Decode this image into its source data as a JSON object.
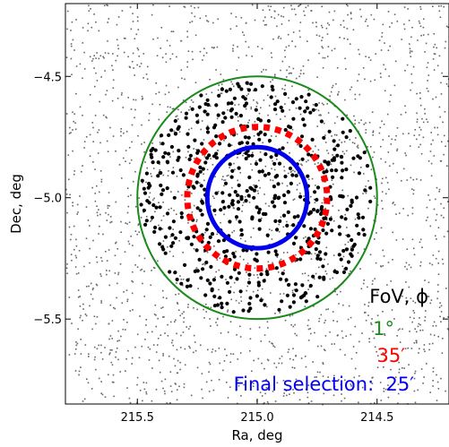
{
  "chart_data": {
    "type": "scatter",
    "xlabel": "Ra, deg",
    "ylabel": "Dec, deg",
    "xlim": [
      215.8,
      214.2
    ],
    "ylim": [
      -5.85,
      -4.2
    ],
    "x_ticks": [
      "215.5",
      "215.0",
      "214.5"
    ],
    "x_tick_values": [
      215.5,
      215.0,
      214.5
    ],
    "y_ticks": [
      "−4.5",
      "−5.0",
      "−5.5"
    ],
    "y_tick_values": [
      -4.5,
      -5.0,
      -5.5
    ],
    "grid": false,
    "center": {
      "ra": 215.0,
      "dec": -5.0
    },
    "circles": [
      {
        "label": "1°",
        "radius_deg": 0.5,
        "color": "#1a8a1a",
        "style": "solid"
      },
      {
        "label": "35′",
        "radius_deg": 0.2917,
        "color": "#ff0000",
        "style": "dotted"
      },
      {
        "label": "25′",
        "radius_deg": 0.2083,
        "color": "#0000ee",
        "style": "solid"
      }
    ],
    "series": [
      {
        "marker": "small-gray-dots",
        "color": "#666666",
        "description_count": 2000
      },
      {
        "marker": "black-dots",
        "color": "#000000",
        "description_count": 560
      }
    ],
    "legend": {
      "title": "FoV, ϕ",
      "items": [
        {
          "text": "1°",
          "color": "#1a8a1a"
        },
        {
          "text": "35′",
          "color": "#ff0000"
        },
        {
          "text": "Final selection:  25′",
          "color": "#0000ee"
        }
      ],
      "placement": "bottom-right"
    }
  }
}
